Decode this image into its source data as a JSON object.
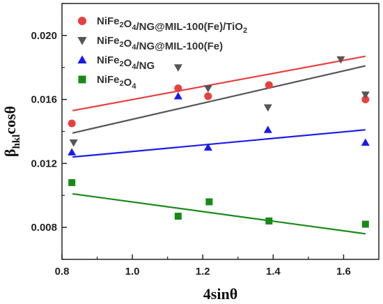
{
  "chart_data": {
    "type": "scatter",
    "xlabel": "4sinθ",
    "ylabel_main": "β",
    "ylabel_sub": "hkl",
    "ylabel_tail": "cosθ",
    "xlim": [
      0.8,
      1.7
    ],
    "ylim": [
      0.006,
      0.022
    ],
    "xticks": [
      "0.8",
      "1.0",
      "1.2",
      "1.4",
      "1.6"
    ],
    "xtick_values": [
      0.8,
      1.0,
      1.2,
      1.4,
      1.6
    ],
    "yticks": [
      "0.008",
      "0.012",
      "0.016",
      "0.020"
    ],
    "ytick_values": [
      0.008,
      0.012,
      0.016,
      0.02
    ],
    "legend_position": "top-left",
    "series": [
      {
        "name_parts": [
          [
            "NiFe",
            ""
          ],
          [
            "2",
            "sub"
          ],
          [
            "O",
            ""
          ],
          [
            "4",
            "sub"
          ],
          [
            "/NG@MIL-100(Fe)/TiO",
            ""
          ],
          [
            "2",
            "sub"
          ]
        ],
        "color": "#e8403f",
        "marker": "circle",
        "points": [
          [
            0.828,
            0.0145
          ],
          [
            1.13,
            0.0167
          ],
          [
            1.215,
            0.0162
          ],
          [
            1.388,
            0.0169
          ],
          [
            1.662,
            0.016
          ]
        ],
        "fit": [
          [
            0.83,
            0.0153
          ],
          [
            1.662,
            0.0187
          ]
        ]
      },
      {
        "name_parts": [
          [
            "NiFe",
            ""
          ],
          [
            "2",
            "sub"
          ],
          [
            "O",
            ""
          ],
          [
            "4",
            "sub"
          ],
          [
            "/NG@MIL-100(Fe)",
            ""
          ]
        ],
        "color": "#555555",
        "marker": "triangle-down",
        "points": [
          [
            0.833,
            0.0133
          ],
          [
            1.13,
            0.018
          ],
          [
            1.215,
            0.0167
          ],
          [
            1.385,
            0.0155
          ],
          [
            1.592,
            0.0185
          ],
          [
            1.662,
            0.0163
          ]
        ],
        "fit": [
          [
            0.83,
            0.0139
          ],
          [
            1.662,
            0.0181
          ]
        ]
      },
      {
        "name_parts": [
          [
            "NiFe",
            ""
          ],
          [
            "2",
            "sub"
          ],
          [
            "O",
            ""
          ],
          [
            "4",
            "sub"
          ],
          [
            "/NG",
            ""
          ]
        ],
        "color": "#1a1aee",
        "marker": "triangle-up",
        "points": [
          [
            0.828,
            0.0127
          ],
          [
            1.13,
            0.0162
          ],
          [
            1.215,
            0.013
          ],
          [
            1.385,
            0.0141
          ],
          [
            1.662,
            0.0133
          ]
        ],
        "fit": [
          [
            0.83,
            0.0124
          ],
          [
            1.662,
            0.0141
          ]
        ]
      },
      {
        "name_parts": [
          [
            "NiFe",
            ""
          ],
          [
            "2",
            "sub"
          ],
          [
            "O",
            ""
          ],
          [
            "4",
            "sub"
          ]
        ],
        "color": "#178a17",
        "marker": "square",
        "points": [
          [
            0.828,
            0.0108
          ],
          [
            1.13,
            0.0087
          ],
          [
            1.218,
            0.0096
          ],
          [
            1.388,
            0.0084
          ],
          [
            1.662,
            0.0082
          ]
        ],
        "fit": [
          [
            0.83,
            0.0101
          ],
          [
            1.662,
            0.0076
          ]
        ]
      }
    ]
  }
}
